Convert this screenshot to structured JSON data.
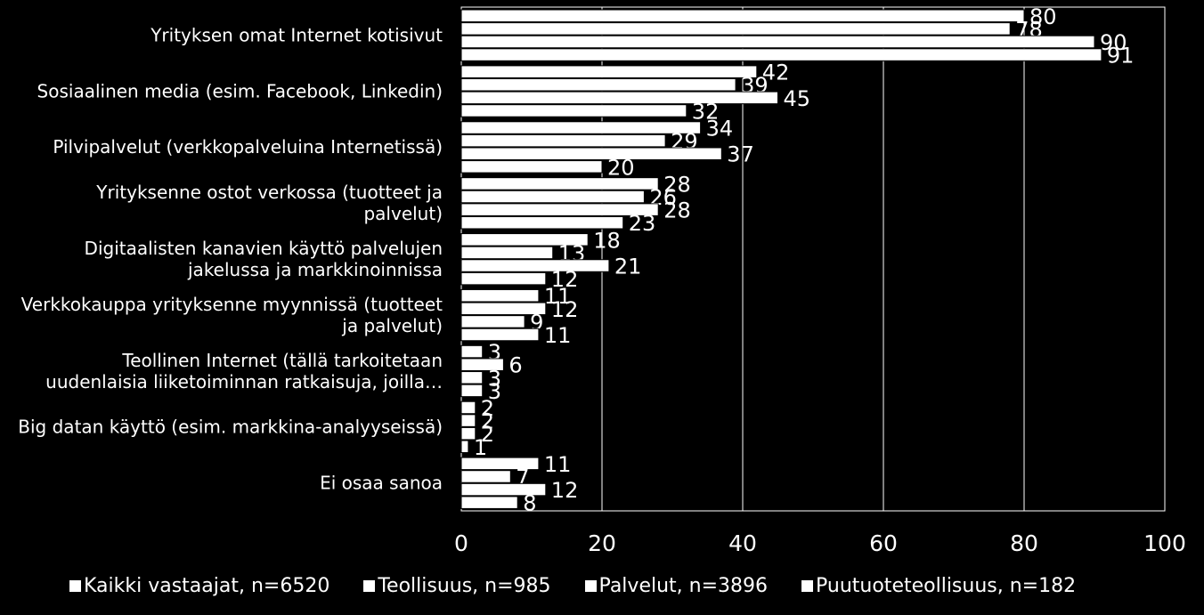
{
  "chart_data": {
    "type": "bar",
    "orientation": "horizontal",
    "categories": [
      [
        "Yrityksen omat Internet kotisivut"
      ],
      [
        "Sosiaalinen media (esim. Facebook, Linkedin)"
      ],
      [
        "Pilvipalvelut  (verkkopalveluina Internetissä)"
      ],
      [
        "Yrityksenne ostot verkossa (tuotteet ja",
        "palvelut)"
      ],
      [
        "Digitaalisten kanavien käyttö palvelujen",
        "jakelussa ja markkinoinnissa"
      ],
      [
        "Verkkokauppa yrityksenne myynnissä (tuotteet",
        "ja palvelut)"
      ],
      [
        "Teollinen Internet (tällä tarkoitetaan",
        "uudenlaisia liiketoiminnan ratkaisuja, joilla…"
      ],
      [
        "Big datan käyttö (esim. markkina-analyyseissä)"
      ],
      [
        "Ei osaa sanoa"
      ]
    ],
    "series": [
      {
        "name": "Kaikki vastaajat, n=6520",
        "values": [
          80,
          42,
          34,
          28,
          18,
          11,
          3,
          2,
          11
        ]
      },
      {
        "name": "Teollisuus, n=985",
        "values": [
          78,
          39,
          29,
          26,
          13,
          12,
          6,
          2,
          7
        ]
      },
      {
        "name": "Palvelut, n=3896",
        "values": [
          90,
          45,
          37,
          28,
          21,
          9,
          3,
          2,
          12
        ]
      },
      {
        "name": "Puutuoteteollisuus, n=182",
        "values": [
          91,
          32,
          20,
          23,
          12,
          11,
          3,
          1,
          8
        ]
      }
    ],
    "series_draw_order": [
      0,
      2,
      1,
      3
    ],
    "xlim": [
      0,
      100
    ],
    "xticks": [
      0,
      20,
      40,
      60,
      80,
      100
    ],
    "grid": true,
    "legend_position": "bottom",
    "bar_color": "#ffffff",
    "background": "#000000"
  }
}
